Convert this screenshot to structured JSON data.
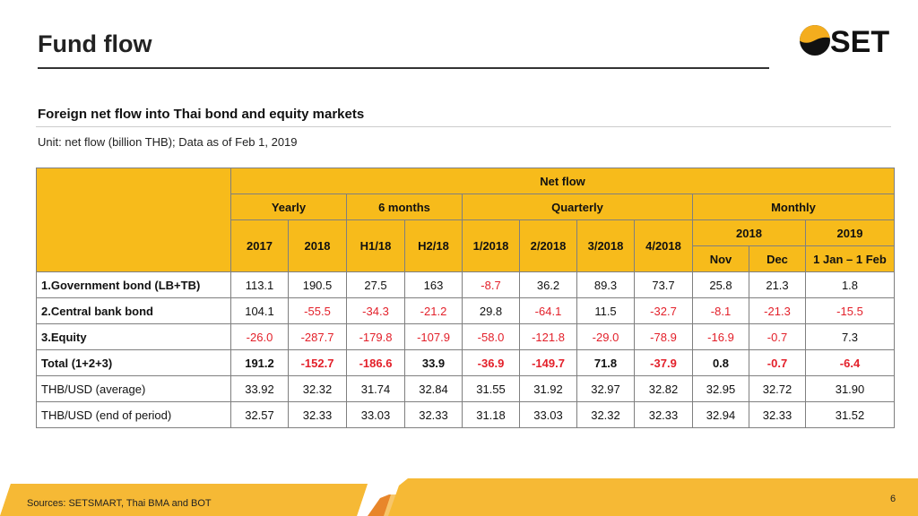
{
  "header": {
    "title": "Fund flow",
    "logo_text": "SET"
  },
  "subtitle": "Foreign net flow into Thai bond and equity markets",
  "unit": "Unit: net flow (billion THB); Data as of Feb 1, 2019",
  "table": {
    "group": "Net flow",
    "periods": {
      "yearly": "Yearly",
      "six_months": "6 months",
      "quarterly": "Quarterly",
      "monthly": "Monthly"
    },
    "cols": [
      "2017",
      "2018",
      "H1/18",
      "H2/18",
      "1/2018",
      "2/2018",
      "3/2018",
      "4/2018"
    ],
    "monthly_years": [
      "2018",
      "2019"
    ],
    "monthly_cols": [
      "Nov",
      "Dec",
      "1 Jan – 1 Feb"
    ],
    "rows": [
      {
        "label": "1.Government bond (LB+TB)",
        "bold_label": true,
        "bold_values": false,
        "values": [
          "113.1",
          "190.5",
          "27.5",
          "163",
          "-8.7",
          "36.2",
          "89.3",
          "73.7",
          "25.8",
          "21.3",
          "1.8"
        ]
      },
      {
        "label": "2.Central bank bond",
        "bold_label": true,
        "bold_values": false,
        "values": [
          "104.1",
          "-55.5",
          "-34.3",
          "-21.2",
          "29.8",
          "-64.1",
          "11.5",
          "-32.7",
          "-8.1",
          "-21.3",
          "-15.5"
        ]
      },
      {
        "label": "3.Equity",
        "bold_label": true,
        "bold_values": false,
        "values": [
          "-26.0",
          "-287.7",
          "-179.8",
          "-107.9",
          "-58.0",
          "-121.8",
          "-29.0",
          "-78.9",
          "-16.9",
          "-0.7",
          "7.3"
        ]
      },
      {
        "label": "Total (1+2+3)",
        "bold_label": true,
        "bold_values": true,
        "values": [
          "191.2",
          "-152.7",
          "-186.6",
          "33.9",
          "-36.9",
          "-149.7",
          "71.8",
          "-37.9",
          "0.8",
          "-0.7",
          "-6.4"
        ]
      },
      {
        "label": "THB/USD (average)",
        "bold_label": false,
        "bold_values": false,
        "values": [
          "33.92",
          "32.32",
          "31.74",
          "32.84",
          "31.55",
          "31.92",
          "32.97",
          "32.82",
          "32.95",
          "32.72",
          "31.90"
        ]
      },
      {
        "label": "THB/USD (end of period)",
        "bold_label": false,
        "bold_values": false,
        "values": [
          "32.57",
          "32.33",
          "33.03",
          "32.33",
          "31.18",
          "33.03",
          "32.32",
          "32.33",
          "32.94",
          "32.33",
          "31.52"
        ]
      }
    ]
  },
  "footer": {
    "sources": "Sources: SETSMART, Thai BMA and BOT",
    "page_number": "6"
  },
  "colors": {
    "accent": "#f7bb1b",
    "negative": "#e3202a",
    "footer_orange": "#e8862a"
  }
}
